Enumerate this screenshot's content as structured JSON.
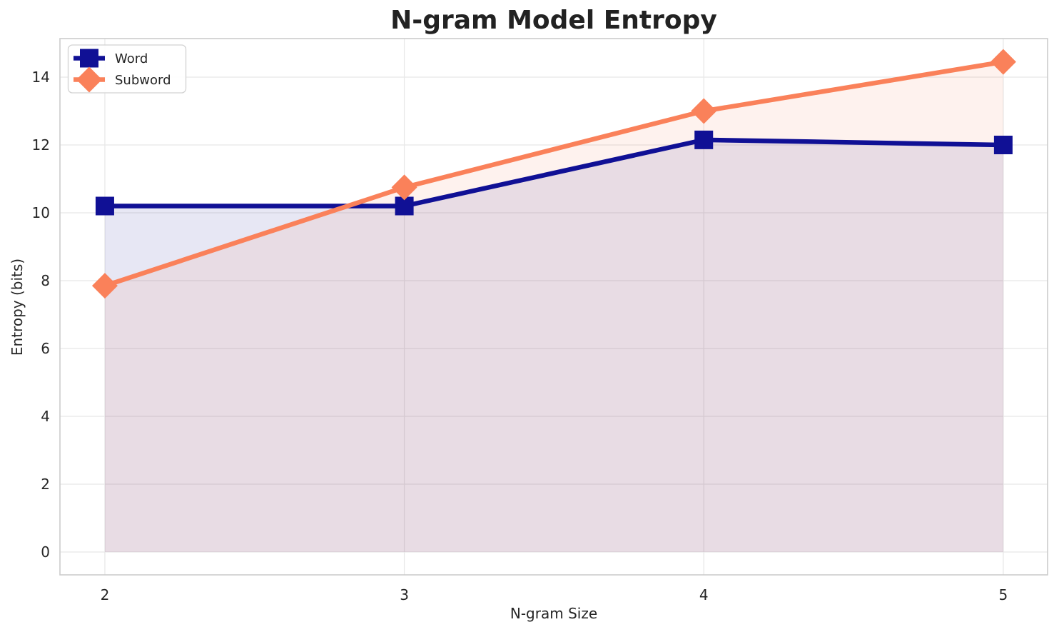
{
  "chart_data": {
    "type": "line",
    "title": "N-gram Model Entropy",
    "xlabel": "N-gram Size",
    "ylabel": "Entropy (bits)",
    "x": [
      2,
      3,
      4,
      5
    ],
    "xtick_labels": [
      "2",
      "3",
      "4",
      "5"
    ],
    "yticks": [
      0,
      2,
      4,
      6,
      8,
      10,
      12,
      14
    ],
    "xlim": [
      1.85,
      5.148
    ],
    "ylim": [
      -0.674,
      15.137
    ],
    "grid": true,
    "legend_position": "upper-left",
    "series": [
      {
        "name": "Word",
        "values": [
          10.2,
          10.2,
          12.15,
          12.0
        ],
        "color": "#101095",
        "marker": "square",
        "fill_to_zero": true,
        "fill_alpha": 0.1
      },
      {
        "name": "Subword",
        "values": [
          7.85,
          10.75,
          13.0,
          14.45
        ],
        "color": "#fa815a",
        "marker": "diamond",
        "fill_to_zero": true,
        "fill_alpha": 0.1
      }
    ],
    "colors": {
      "background": "#ffffff",
      "grid": "#e8e8e8",
      "spine": "#cccccc",
      "text": "#262626",
      "legend_border": "#d2d2d2",
      "legend_background": "#ffffff"
    }
  }
}
